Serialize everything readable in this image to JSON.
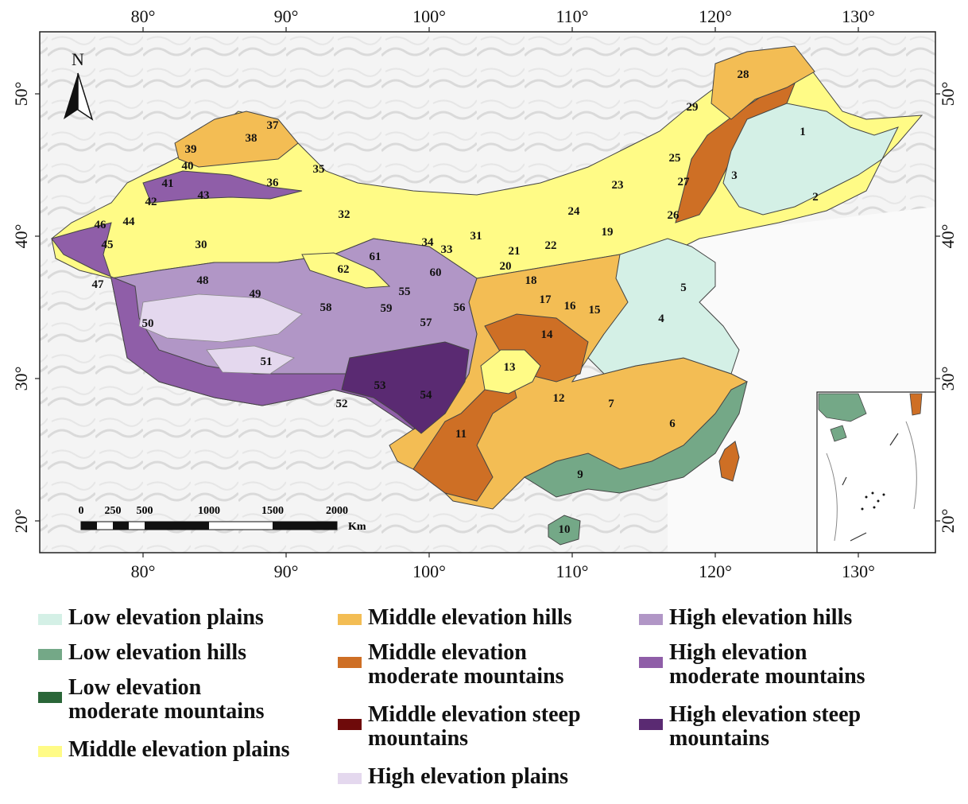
{
  "map": {
    "lon_ticks": [
      "80°",
      "90°",
      "100°",
      "110°",
      "120°",
      "130°"
    ],
    "lat_ticks": [
      "20°",
      "30°",
      "40°",
      "50°"
    ],
    "north_label": "N",
    "scale_labels": [
      "0",
      "250",
      "500",
      "1000",
      "1500",
      "2000"
    ],
    "scale_unit": "Km",
    "region_numbers": [
      "1",
      "2",
      "3",
      "4",
      "5",
      "6",
      "7",
      "9",
      "10",
      "11",
      "12",
      "13",
      "14",
      "15",
      "16",
      "17",
      "18",
      "19",
      "20",
      "21",
      "22",
      "23",
      "24",
      "25",
      "26",
      "27",
      "28",
      "29",
      "30",
      "31",
      "32",
      "33",
      "34",
      "35",
      "36",
      "37",
      "38",
      "39",
      "40",
      "41",
      "42",
      "43",
      "44",
      "45",
      "46",
      "47",
      "48",
      "49",
      "50",
      "51",
      "52",
      "53",
      "54",
      "55",
      "56",
      "57",
      "58",
      "59",
      "60",
      "61",
      "62"
    ]
  },
  "legend": [
    {
      "label": "Low elevation plains",
      "color": "#d4f0e6"
    },
    {
      "label": "Low elevation hills",
      "color": "#74a887"
    },
    {
      "label": "Low elevation moderate mountains",
      "color": "#2a6638"
    },
    {
      "label": "Middle elevation plains",
      "color": "#fffb86"
    },
    {
      "label": "Middle elevation hills",
      "color": "#f3bd54"
    },
    {
      "label": "Middle elevation moderate mountains",
      "color": "#ce6f25"
    },
    {
      "label": "Middle elevation steep mountains",
      "color": "#6e0a0a"
    },
    {
      "label": "High elevation plains",
      "color": "#e4d8ee"
    },
    {
      "label": "High elevation hills",
      "color": "#b196c6"
    },
    {
      "label": "High elevation moderate mountains",
      "color": "#8f5ea8"
    },
    {
      "label": "High elevation steep mountains",
      "color": "#5a2a72"
    }
  ]
}
